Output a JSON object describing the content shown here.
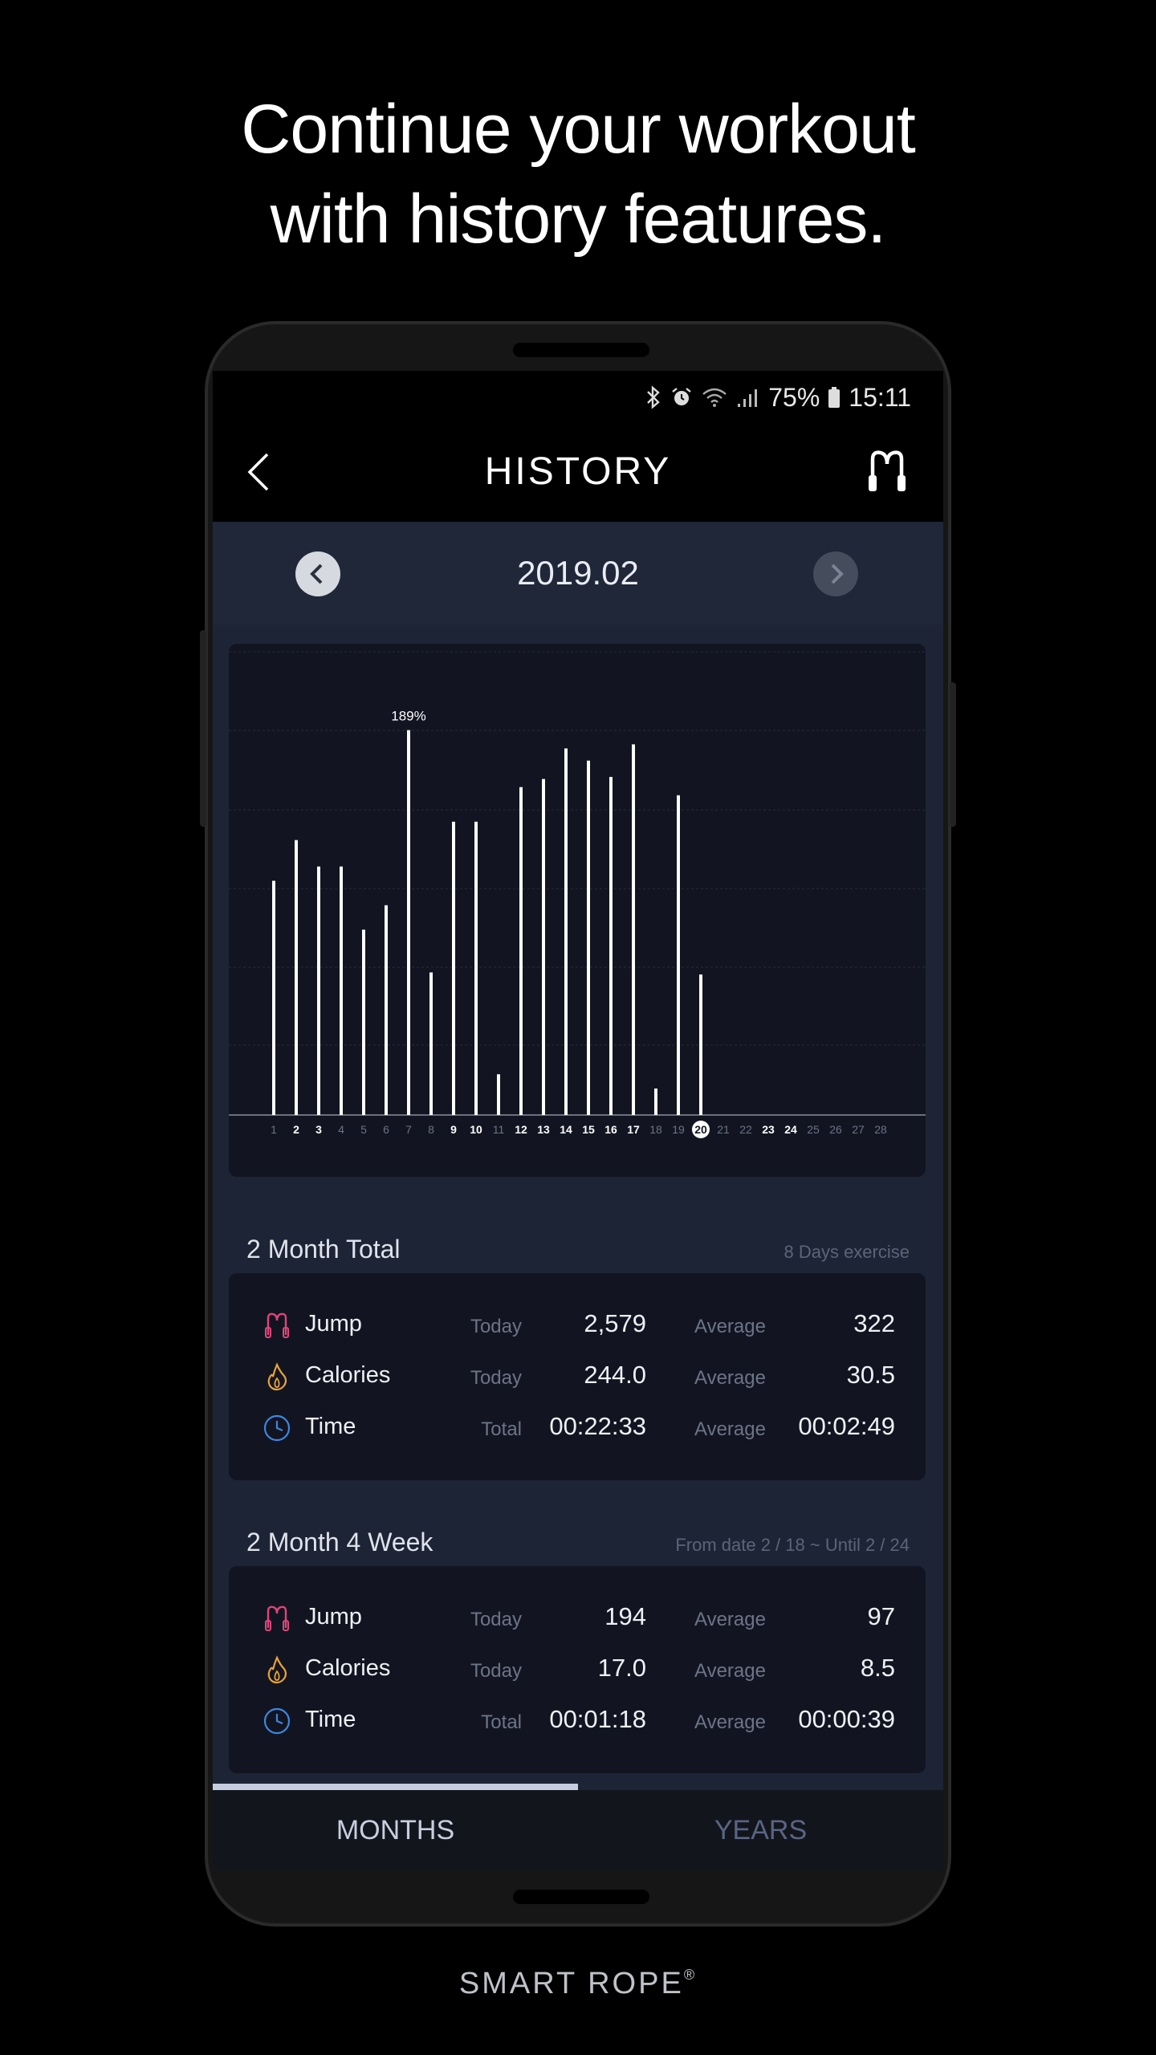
{
  "promo": {
    "headline_line1": "Continue your workout",
    "headline_line2": "with history features.",
    "brand": "SMART ROPE",
    "brand_mark": "®"
  },
  "status_bar": {
    "battery": "75%",
    "time": "15:11",
    "icons": [
      "bluetooth-icon",
      "alarm-icon",
      "wifi-icon",
      "signal-icon",
      "battery-icon"
    ]
  },
  "app_bar": {
    "title": "HISTORY",
    "back_icon": "chevron-left-icon",
    "action_icon": "jump-rope-icon"
  },
  "month_nav": {
    "label": "2019.02",
    "prev_icon": "chevron-left-icon",
    "next_icon": "chevron-right-icon"
  },
  "chart_data": {
    "type": "bar",
    "categories": [
      "1",
      "2",
      "3",
      "4",
      "5",
      "6",
      "7",
      "8",
      "9",
      "10",
      "11",
      "12",
      "13",
      "14",
      "15",
      "16",
      "17",
      "18",
      "19",
      "20",
      "21",
      "22",
      "23",
      "24",
      "25",
      "26",
      "27",
      "28"
    ],
    "values": [
      115,
      135,
      122,
      122,
      91,
      103,
      189,
      70,
      144,
      144,
      20,
      161,
      165,
      180,
      174,
      166,
      182,
      13,
      157,
      69,
      0,
      0,
      0,
      0,
      0,
      0,
      0,
      0
    ],
    "peak_label": "189%",
    "bold_days": [
      "2",
      "3",
      "9",
      "10",
      "12",
      "13",
      "14",
      "15",
      "16",
      "17",
      "20",
      "23",
      "24"
    ],
    "selected_day": "20",
    "ylim": [
      0,
      200
    ],
    "grid": true,
    "colors": {
      "bar": "#ffffff",
      "tick_bold": "#ffffff",
      "tick_dim": "#6b7386",
      "selected_bg": "#ffffff",
      "selected_fg": "#121521"
    }
  },
  "summary": {
    "title": "2 Month Total",
    "note": "8 Days exercise",
    "rows": [
      {
        "icon": "jump-rope-icon",
        "name": "Jump",
        "period": "Today",
        "value": "2,579",
        "avg_label": "Average",
        "avg": "322"
      },
      {
        "icon": "flame-icon",
        "name": "Calories",
        "period": "Today",
        "value": "244.0",
        "avg_label": "Average",
        "avg": "30.5"
      },
      {
        "icon": "clock-icon",
        "name": "Time",
        "period": "Total",
        "value": "00:22:33",
        "avg_label": "Average",
        "avg": "00:02:49"
      }
    ]
  },
  "week": {
    "title": "2 Month 4 Week",
    "note": "From date 2 / 18 ~ Until 2 / 24",
    "rows": [
      {
        "icon": "jump-rope-icon",
        "name": "Jump",
        "period": "Today",
        "value": "194",
        "avg_label": "Average",
        "avg": "97"
      },
      {
        "icon": "flame-icon",
        "name": "Calories",
        "period": "Today",
        "value": "17.0",
        "avg_label": "Average",
        "avg": "8.5"
      },
      {
        "icon": "clock-icon",
        "name": "Time",
        "period": "Total",
        "value": "00:01:18",
        "avg_label": "Average",
        "avg": "00:00:39"
      }
    ]
  },
  "tabs": {
    "months": "MONTHS",
    "years": "YEARS",
    "active": "months"
  },
  "colors": {
    "jump": "#e0457a",
    "calories": "#e8a23a",
    "time": "#3f86e0"
  }
}
